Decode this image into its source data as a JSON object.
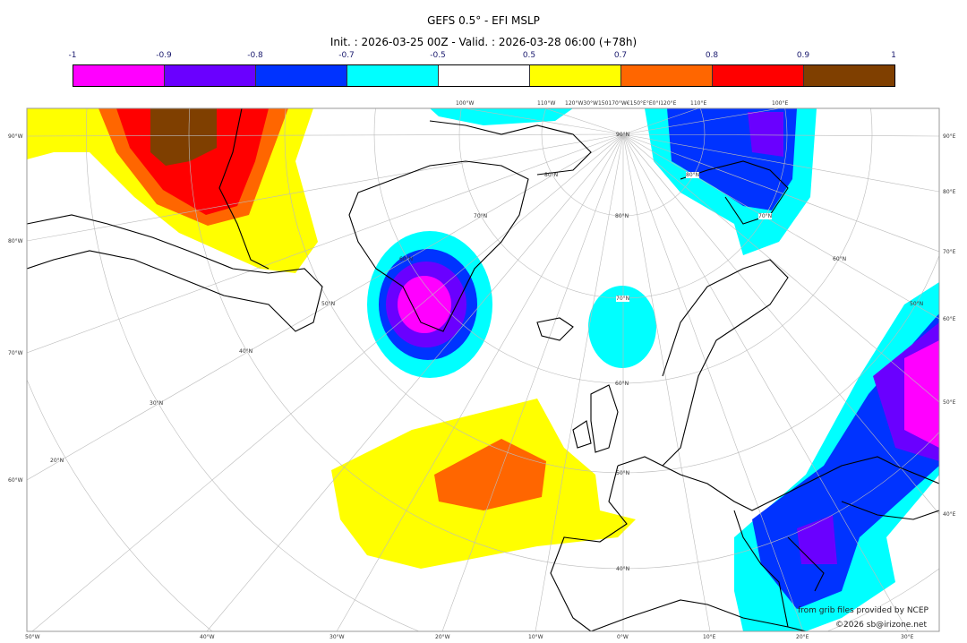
{
  "title": "GEFS 0.5° - EFI MSLP",
  "subtitle": "Init. : 2026-03-25 00Z - Valid. : 2026-03-28 06:00 (+78h)",
  "colorbar": {
    "ticks": [
      "-1",
      "-0.9",
      "-0.8",
      "-0.7",
      "-0.5",
      "0.5",
      "0.7",
      "0.8",
      "0.9",
      "1"
    ],
    "colors": [
      "#ff00ff",
      "#6a00ff",
      "#0033ff",
      "#00ffff",
      "#ffffff",
      "#ffff00",
      "#ff6600",
      "#ff0000",
      "#7f3f00"
    ]
  },
  "axis_labels": {
    "left": [
      "90°W",
      "80°W",
      "70°W",
      "60°W"
    ],
    "right": [
      "90°E",
      "80°E",
      "70°E",
      "60°E",
      "50°E",
      "40°E"
    ],
    "bottom": [
      "50°W",
      "40°W",
      "30°W",
      "20°W",
      "10°W",
      "0°W",
      "10°E",
      "20°E",
      "30°E"
    ],
    "top": [
      "100°W",
      "110°W",
      "120°W30°W150170°W€150°E°E0°I120°E",
      "110°E",
      "100°E"
    ],
    "latitude": [
      "90°N",
      "80°N",
      "70°N",
      "60°N",
      "50°N",
      "40°N",
      "30°N",
      "20°N",
      "80°N",
      "70°N",
      "60°N",
      "50°N",
      "40°N",
      "80°N",
      "70°N",
      "60°N",
      "50°N"
    ]
  },
  "credits": {
    "source": "from grib files provided by NCEP",
    "copyright": "©2026 sb@irizone.net"
  }
}
